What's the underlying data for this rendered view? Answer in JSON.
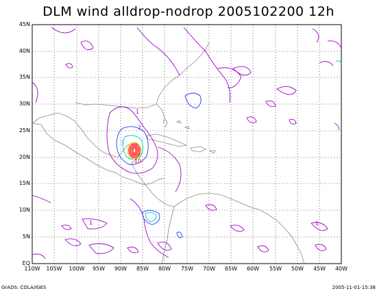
{
  "title": "DLM wind alldrop-nodrop 2005102200 12h",
  "y_axis_labels": [
    "45N",
    "40N",
    "35N",
    "30N",
    "25N",
    "20N",
    "15N",
    "10N",
    "5N",
    "EQ"
  ],
  "x_axis_labels": [
    "110W",
    "105W",
    "100W",
    "95W",
    "90W",
    "85W",
    "80W",
    "75W",
    "70W",
    "65W",
    "60W",
    "55W",
    "50W",
    "45W",
    "40W"
  ],
  "map_extent": {
    "lon": [
      -110,
      -40
    ],
    "lat": [
      0,
      45
    ]
  },
  "contour_labels": [
    "2",
    "3",
    "10",
    "1",
    "1",
    "1"
  ],
  "colors": {
    "contour_1": "#a000c8",
    "contour_2": "#1e3cff",
    "contour_3": "#00c8c8",
    "contour_high_red": "#ff0000",
    "contour_high_yellow": "#e6dc32",
    "coastline": "#888888",
    "grid": "#000000"
  },
  "footer": {
    "left": "GrADS: COLA/IGES",
    "right": "2005-11-01-15:38"
  }
}
